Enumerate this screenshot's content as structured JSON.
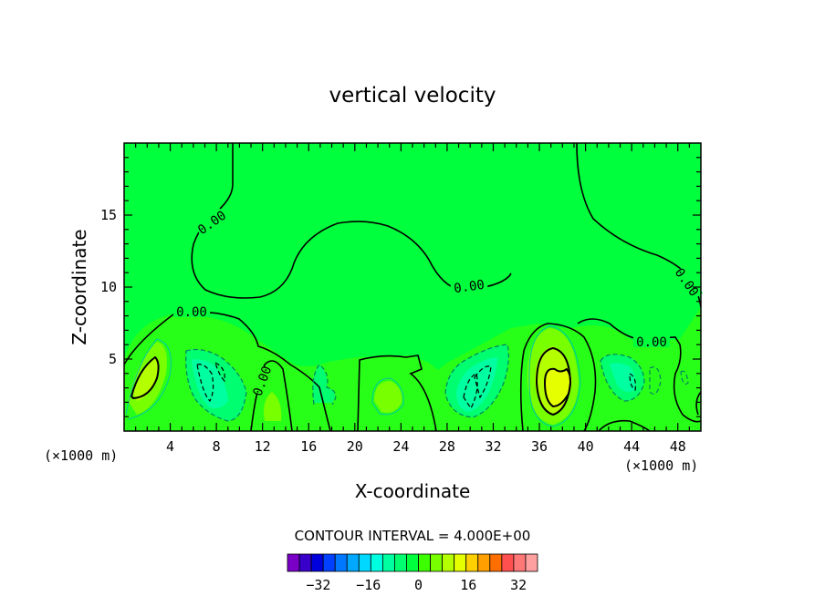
{
  "chart_data": {
    "type": "heatmap",
    "subtype": "filled-contour",
    "title": "vertical velocity",
    "xlabel": "X-coordinate",
    "ylabel": "Z-coordinate",
    "x_unit_label": "(×1000 m)",
    "x_unit_label_right": "(×1000 m)",
    "xlim": [
      0,
      50
    ],
    "ylim": [
      0,
      20
    ],
    "xticks": [
      4,
      8,
      12,
      16,
      20,
      24,
      28,
      32,
      36,
      40,
      44,
      48
    ],
    "yticks": [
      5,
      10,
      15
    ],
    "contour_interval_text": "CONTOUR INTERVAL = 4.000E+00",
    "contour_interval": 4,
    "contour_labels": [
      "0.00",
      "0.00",
      "0.00",
      "0.00",
      "0.00",
      "0.00",
      "0.00"
    ],
    "colorbar": {
      "levels": [
        -40,
        -36,
        -32,
        -28,
        -24,
        -20,
        -16,
        -12,
        -8,
        -4,
        0,
        4,
        8,
        12,
        16,
        20,
        24,
        28,
        32,
        36,
        40
      ],
      "tick_values": [
        -32,
        -16,
        0,
        16,
        32
      ],
      "tick_labels": [
        "−32",
        "−16",
        "0",
        "16",
        "32"
      ],
      "colors": [
        "#7a00c8",
        "#3800c8",
        "#0000dc",
        "#0040ff",
        "#0078ff",
        "#00a8ff",
        "#00d8ff",
        "#00ffe0",
        "#00ffa0",
        "#00ff70",
        "#00ff3c",
        "#3cff00",
        "#78ff00",
        "#b4ff00",
        "#e6ff00",
        "#ffd000",
        "#ffa000",
        "#ff6e00",
        "#ff5050",
        "#ff7878",
        "#ffa0a0"
      ]
    },
    "background_color": "#00ff3c",
    "features": [
      {
        "type": "updraft",
        "x": 2.0,
        "z": 3.2,
        "max_value": 8
      },
      {
        "type": "downdraft",
        "x": 7.0,
        "z": 3.0,
        "min_value": -8
      },
      {
        "type": "updraft",
        "x": 13.0,
        "z": 1.5,
        "max_value": 4
      },
      {
        "type": "updraft",
        "x": 22.5,
        "z": 2.2,
        "max_value": 4
      },
      {
        "type": "downdraft",
        "x": 30.5,
        "z": 2.8,
        "min_value": -8
      },
      {
        "type": "updraft",
        "x": 37.5,
        "z": 3.2,
        "max_value": 16
      },
      {
        "type": "downdraft",
        "x": 43.5,
        "z": 3.8,
        "min_value": -4
      }
    ]
  }
}
